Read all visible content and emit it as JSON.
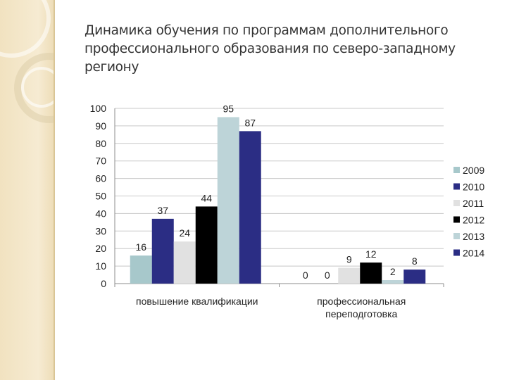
{
  "slide": {
    "title": "Динамика обучения по программам дополнительного профессионального образования по северо-западному региону"
  },
  "chart_data": {
    "type": "bar",
    "categories": [
      [
        "повышение квалификации"
      ],
      [
        "профессиональная",
        "переподготовка"
      ]
    ],
    "series": [
      {
        "name": "2009",
        "color": "#a7c8cb",
        "values": [
          16,
          0
        ]
      },
      {
        "name": "2010",
        "color": "#2b2d84",
        "values": [
          37,
          0
        ]
      },
      {
        "name": "2011",
        "color": "#e1e1e1",
        "values": [
          24,
          9
        ]
      },
      {
        "name": "2012",
        "color": "#000000",
        "values": [
          44,
          12
        ]
      },
      {
        "name": "2013",
        "color": "#bdd4d8",
        "values": [
          95,
          2
        ]
      },
      {
        "name": "2014",
        "color": "#2b2d84",
        "values": [
          87,
          8
        ]
      }
    ],
    "ylim": [
      0,
      100
    ],
    "yticks": [
      0,
      10,
      20,
      30,
      40,
      50,
      60,
      70,
      80,
      90,
      100
    ],
    "grid": true,
    "legend": "right"
  }
}
